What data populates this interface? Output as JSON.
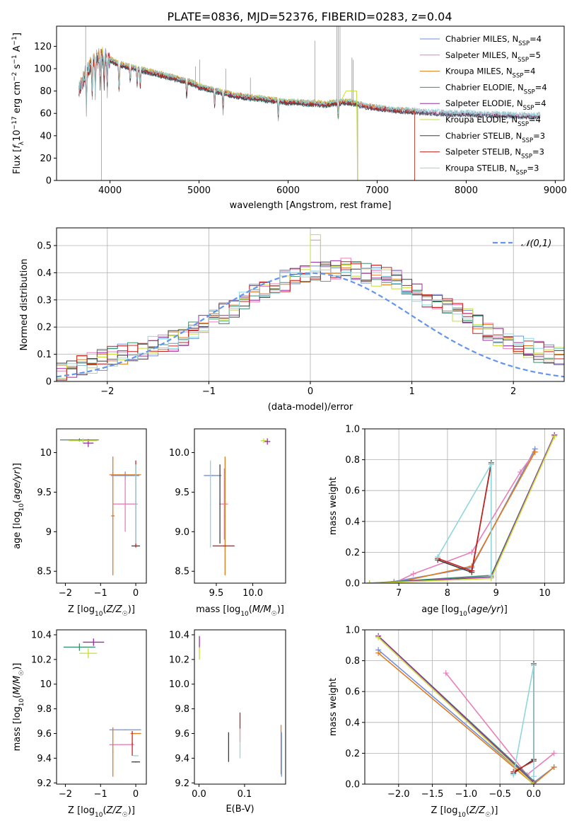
{
  "figure_title": "PLATE=0836, MJD=52376, FIBERID=0283, z=0.04",
  "colors": {
    "chabrier_miles": "#6f8fd6",
    "salpeter_miles": "#e87fb9",
    "kroupa_miles": "#e07b1c",
    "chabrier_elodie": "#3a8f6e",
    "salpeter_elodie": "#9c2fa0",
    "kroupa_elodie": "#c7dd3a",
    "chabrier_stelib": "#3c3c3c",
    "salpeter_stelib": "#c8211f",
    "kroupa_stelib": "#8fd6dd",
    "normal_curve": "#6495ed",
    "observed_spectrum": "#999999"
  },
  "chart_data": [
    {
      "id": "spectrum",
      "type": "line",
      "xlabel": "wavelength [Angstrom, rest frame]",
      "ylabel": "Flux [f_λ 10^-17 erg cm^-2 s^-1 A^-1]",
      "xlim": [
        3400,
        9100
      ],
      "ylim": [
        0,
        138
      ],
      "xticks": [
        4000,
        5000,
        6000,
        7000,
        8000,
        9000
      ],
      "yticks": [
        0,
        20,
        40,
        60,
        80,
        100,
        120
      ],
      "legend_position": "upper-right",
      "legend": [
        {
          "name": "Chabrier MILES, N_SSP=4",
          "pre": "Chabrier MILES, N",
          "sub": "SSP",
          "post": "=4",
          "color_key": "chabrier_miles"
        },
        {
          "name": "Salpeter MILES, N_SSP=5",
          "pre": "Salpeter MILES, N",
          "sub": "SSP",
          "post": "=5",
          "color_key": "salpeter_miles"
        },
        {
          "name": "Kroupa MILES, N_SSP=4",
          "pre": "Kroupa MILES, N",
          "sub": "SSP",
          "post": "=4",
          "color_key": "kroupa_miles"
        },
        {
          "name": "Chabrier ELODIE, N_SSP=4",
          "pre": "Chabrier ELODIE, N",
          "sub": "SSP",
          "post": "=4",
          "color_key": "chabrier_elodie"
        },
        {
          "name": "Salpeter ELODIE, N_SSP=4",
          "pre": "Salpeter ELODIE, N",
          "sub": "SSP",
          "post": "=4",
          "color_key": "salpeter_elodie"
        },
        {
          "name": "Kroupa ELODIE, N_SSP=4",
          "pre": "Kroupa ELODIE, N",
          "sub": "SSP",
          "post": "=4",
          "color_key": "kroupa_elodie"
        },
        {
          "name": "Chabrier STELIB, N_SSP=3",
          "pre": "Chabrier STELIB, N",
          "sub": "SSP",
          "post": "=3",
          "color_key": "chabrier_stelib"
        },
        {
          "name": "Salpeter STELIB, N_SSP=3",
          "pre": "Salpeter STELIB, N",
          "sub": "SSP",
          "post": "=3",
          "color_key": "salpeter_stelib"
        },
        {
          "name": "Kroupa STELIB, N_SSP=3",
          "pre": "Kroupa STELIB, N",
          "sub": "SSP",
          "post": "=3",
          "color_key": "kroupa_stelib"
        }
      ],
      "spectrum_envelope": {
        "x": [
          3650,
          3700,
          3800,
          3900,
          4000,
          4100,
          4200,
          4300,
          4400,
          4500,
          4600,
          4700,
          4800,
          4900,
          5000,
          5100,
          5200,
          5300,
          5400,
          5500,
          5600,
          5700,
          5800,
          5900,
          6000,
          6100,
          6200,
          6300,
          6400,
          6500,
          6600,
          6700,
          6800,
          6900,
          7000,
          7200,
          7400,
          7600,
          7800,
          8000,
          8200,
          8400,
          8600,
          8800
        ],
        "y": [
          80,
          90,
          105,
          112,
          108,
          104,
          102,
          100,
          98,
          96,
          94,
          92,
          90,
          88,
          84,
          82,
          80,
          78,
          76,
          75,
          74,
          73,
          72,
          71,
          70,
          70,
          69,
          69,
          68,
          69,
          70,
          70,
          68,
          66,
          65,
          63,
          62,
          61,
          60,
          60,
          59,
          59,
          58,
          58
        ]
      },
      "dropouts": [
        {
          "x": 3720,
          "y": 0
        },
        {
          "x": 3905,
          "y": 0
        },
        {
          "x": 6780,
          "y": 0
        },
        {
          "x": 7420,
          "y": 0
        }
      ]
    },
    {
      "id": "residual_histogram",
      "type": "line",
      "xlabel": "(data-model)/error",
      "ylabel": "Normed distribution",
      "xlim": [
        -2.5,
        2.5
      ],
      "ylim": [
        0,
        0.565
      ],
      "xticks": [
        -2,
        -1,
        0,
        1,
        2
      ],
      "yticks": [
        0.0,
        0.1,
        0.2,
        0.3,
        0.4,
        0.5
      ],
      "grid": true,
      "legend_position": "upper-right",
      "reference_curve": {
        "name": "𝒩(0,1)",
        "mu": 0,
        "sigma": 1
      },
      "bin_width": 0.1,
      "bin_start": -2.5,
      "histogram_base": [
        0.03,
        0.04,
        0.06,
        0.07,
        0.08,
        0.09,
        0.1,
        0.11,
        0.12,
        0.13,
        0.14,
        0.15,
        0.17,
        0.19,
        0.21,
        0.23,
        0.25,
        0.27,
        0.3,
        0.32,
        0.34,
        0.36,
        0.37,
        0.38,
        0.39,
        0.4,
        0.4,
        0.41,
        0.42,
        0.41,
        0.4,
        0.39,
        0.38,
        0.37,
        0.35,
        0.33,
        0.31,
        0.29,
        0.27,
        0.25,
        0.23,
        0.21,
        0.19,
        0.17,
        0.15,
        0.13,
        0.12,
        0.11,
        0.1,
        0.09
      ]
    },
    {
      "id": "age_vs_Z",
      "type": "scatter",
      "xlabel": "Z [log10(Z/Z☉)]",
      "ylabel": "age  [log10(age/yr)]",
      "xlim": [
        -2.25,
        0.3
      ],
      "ylim": [
        8.35,
        10.3
      ],
      "xticks": [
        -2,
        -1,
        0
      ],
      "yticks": [
        8.5,
        9.0,
        9.5,
        10.0
      ],
      "points": [
        {
          "x": -1.6,
          "y": 10.16,
          "xerr": 0.55,
          "yerr": 0.02,
          "color_key": "chabrier_elodie"
        },
        {
          "x": -1.35,
          "y": 10.12,
          "xerr": 0.15,
          "yerr": 0.05,
          "color_key": "salpeter_elodie"
        },
        {
          "x": -1.5,
          "y": 10.15,
          "xerr": 0.4,
          "yerr": 0.03,
          "color_key": "kroupa_elodie"
        },
        {
          "x": -0.3,
          "y": 9.71,
          "xerr": 0.4,
          "yerr": 0.05,
          "color_key": "chabrier_miles"
        },
        {
          "x": -0.3,
          "y": 9.35,
          "xerr": 0.35,
          "yerr": 0.35,
          "color_key": "salpeter_miles"
        },
        {
          "x": -0.3,
          "y": 9.72,
          "xerr": 0.45,
          "yerr": 0.0,
          "color_key": "kroupa_miles"
        },
        {
          "x": -0.65,
          "y": 9.2,
          "xerr": 0.05,
          "yerr": 0.75,
          "color_key": "kroupa_miles"
        },
        {
          "x": 0.0,
          "y": 8.82,
          "xerr": 0.12,
          "yerr": 0.0,
          "color_key": "chabrier_stelib"
        },
        {
          "x": 0.0,
          "y": 9.35,
          "xerr": 0.0,
          "yerr": 0.55,
          "color_key": "salpeter_stelib"
        },
        {
          "x": 0.0,
          "y": 9.35,
          "xerr": 0.0,
          "yerr": 0.5,
          "color_key": "kroupa_stelib"
        }
      ]
    },
    {
      "id": "age_vs_mass",
      "type": "scatter",
      "xlabel": "mass [log10(M/M☉)]",
      "ylabel": "",
      "xlim": [
        9.2,
        10.45
      ],
      "ylim": [
        8.35,
        10.3
      ],
      "xticks": [
        9.5,
        10.0
      ],
      "yticks": [
        8.5,
        9.0,
        9.5,
        10.0
      ],
      "points": [
        {
          "x": 10.15,
          "y": 10.15,
          "xerr": 0.04,
          "yerr": 0.03,
          "color_key": "kroupa_elodie"
        },
        {
          "x": 10.2,
          "y": 10.14,
          "xerr": 0.04,
          "yerr": 0.04,
          "color_key": "salpeter_elodie"
        },
        {
          "x": 9.45,
          "y": 9.71,
          "xerr": 0.12,
          "yerr": 0.0,
          "color_key": "chabrier_miles"
        },
        {
          "x": 9.55,
          "y": 9.35,
          "xerr": 0.0,
          "yerr": 0.5,
          "color_key": "chabrier_stelib"
        },
        {
          "x": 9.61,
          "y": 9.35,
          "xerr": 0.05,
          "yerr": 0.45,
          "color_key": "salpeter_miles"
        },
        {
          "x": 9.62,
          "y": 9.2,
          "xerr": 0.0,
          "yerr": 0.75,
          "color_key": "kroupa_miles"
        },
        {
          "x": 9.6,
          "y": 8.82,
          "xerr": 0.15,
          "yerr": 0.0,
          "color_key": "salpeter_stelib"
        },
        {
          "x": 9.42,
          "y": 9.35,
          "xerr": 0.0,
          "yerr": 0.55,
          "color_key": "kroupa_stelib"
        }
      ]
    },
    {
      "id": "massweight_vs_age",
      "type": "line",
      "xlabel": "age  [log10(age/yr)]",
      "ylabel": "mass weight",
      "xlim": [
        6.3,
        10.4
      ],
      "ylim": [
        0,
        1.0
      ],
      "xticks": [
        7,
        8,
        9,
        10
      ],
      "yticks": [
        0.0,
        0.2,
        0.4,
        0.6,
        0.8,
        1.0
      ],
      "grid": true,
      "series": [
        {
          "color_key": "chabrier_miles",
          "x": [
            6.9,
            8.5,
            9.8
          ],
          "y": [
            0.01,
            0.1,
            0.87
          ]
        },
        {
          "color_key": "salpeter_miles",
          "x": [
            6.9,
            7.3,
            8.5,
            9.5,
            9.8
          ],
          "y": [
            0.0,
            0.06,
            0.2,
            0.72,
            0.85
          ]
        },
        {
          "color_key": "kroupa_miles",
          "x": [
            6.9,
            8.5,
            9.8
          ],
          "y": [
            0.0,
            0.11,
            0.85
          ]
        },
        {
          "color_key": "chabrier_elodie",
          "x": [
            6.4,
            8.9,
            10.2
          ],
          "y": [
            0.0,
            0.05,
            0.96
          ]
        },
        {
          "color_key": "salpeter_elodie",
          "x": [
            6.4,
            8.9,
            10.2
          ],
          "y": [
            0.0,
            0.04,
            0.96
          ]
        },
        {
          "color_key": "kroupa_elodie",
          "x": [
            6.4,
            8.9,
            10.2
          ],
          "y": [
            0.0,
            0.03,
            0.95
          ]
        },
        {
          "color_key": "chabrier_stelib",
          "x": [
            7.8,
            8.5,
            8.9
          ],
          "y": [
            0.15,
            0.07,
            0.78
          ]
        },
        {
          "color_key": "salpeter_stelib",
          "x": [
            7.8,
            8.5,
            8.9
          ],
          "y": [
            0.16,
            0.08,
            0.77
          ]
        },
        {
          "color_key": "kroupa_stelib",
          "x": [
            7.8,
            8.9,
            8.9
          ],
          "y": [
            0.17,
            0.77,
            0.05
          ]
        }
      ]
    },
    {
      "id": "mass_vs_Z",
      "type": "scatter",
      "xlabel": "Z [log10(Z/Z☉)]",
      "ylabel": "mass [log10(M/M☉)]",
      "xlim": [
        -2.25,
        0.3
      ],
      "ylim": [
        9.19,
        10.44
      ],
      "xticks": [
        -2,
        -1,
        0
      ],
      "yticks": [
        9.2,
        9.4,
        9.6,
        9.8,
        10.0,
        10.2,
        10.4
      ],
      "points": [
        {
          "x": -1.6,
          "y": 10.3,
          "xerr": 0.45,
          "yerr": 0.03,
          "color_key": "chabrier_elodie"
        },
        {
          "x": -1.2,
          "y": 10.34,
          "xerr": 0.3,
          "yerr": 0.03,
          "color_key": "salpeter_elodie"
        },
        {
          "x": -1.35,
          "y": 10.25,
          "xerr": 0.25,
          "yerr": 0.04,
          "color_key": "kroupa_elodie"
        },
        {
          "x": -0.3,
          "y": 9.63,
          "xerr": 0.45,
          "yerr": 0.0,
          "color_key": "chabrier_miles"
        },
        {
          "x": -0.4,
          "y": 9.51,
          "xerr": 0.35,
          "yerr": 0.0,
          "color_key": "salpeter_miles"
        },
        {
          "x": -0.65,
          "y": 9.45,
          "xerr": 0.0,
          "yerr": 0.2,
          "color_key": "kroupa_miles"
        },
        {
          "x": 0.0,
          "y": 9.6,
          "xerr": 0.15,
          "yerr": 0.0,
          "color_key": "kroupa_miles"
        },
        {
          "x": 0.0,
          "y": 9.37,
          "xerr": 0.12,
          "yerr": 0.0,
          "color_key": "chabrier_stelib"
        },
        {
          "x": -0.1,
          "y": 9.52,
          "xerr": 0.0,
          "yerr": 0.1,
          "color_key": "salpeter_stelib"
        },
        {
          "x": 0.0,
          "y": 9.42,
          "xerr": 0.08,
          "yerr": 0.0,
          "color_key": "kroupa_stelib"
        }
      ]
    },
    {
      "id": "mass_vs_ebv",
      "type": "scatter",
      "xlabel": "E(B-V)",
      "ylabel": "",
      "xlim": [
        -0.01,
        0.19
      ],
      "ylim": [
        9.19,
        10.44
      ],
      "xticks": [
        0.0,
        0.1
      ],
      "yticks": [
        9.2,
        9.4,
        9.6,
        9.8,
        10.0,
        10.2,
        10.4
      ],
      "points": [
        {
          "x": 0.001,
          "y": 10.34,
          "xerr": 0.0,
          "yerr": 0.05,
          "color_key": "salpeter_elodie"
        },
        {
          "x": 0.001,
          "y": 10.25,
          "xerr": 0.0,
          "yerr": 0.05,
          "color_key": "kroupa_elodie"
        },
        {
          "x": 0.065,
          "y": 9.49,
          "xerr": 0.0,
          "yerr": 0.12,
          "color_key": "chabrier_stelib"
        },
        {
          "x": 0.09,
          "y": 9.65,
          "xerr": 0.0,
          "yerr": 0.12,
          "color_key": "salpeter_stelib"
        },
        {
          "x": 0.09,
          "y": 9.52,
          "xerr": 0.0,
          "yerr": 0.12,
          "color_key": "kroupa_stelib"
        },
        {
          "x": 0.18,
          "y": 9.47,
          "xerr": 0.0,
          "yerr": 0.2,
          "color_key": "kroupa_miles"
        },
        {
          "x": 0.181,
          "y": 9.43,
          "xerr": 0.0,
          "yerr": 0.18,
          "color_key": "chabrier_miles"
        }
      ]
    },
    {
      "id": "massweight_vs_Z",
      "type": "line",
      "xlabel": "Z [log10(Z/Z☉)]",
      "ylabel": "mass weight",
      "xlim": [
        -2.5,
        0.45
      ],
      "ylim": [
        0,
        1.0
      ],
      "xticks": [
        -2.0,
        -1.5,
        -1.0,
        -0.5,
        0.0
      ],
      "yticks": [
        0.0,
        0.2,
        0.4,
        0.6,
        0.8,
        1.0
      ],
      "grid": true,
      "series": [
        {
          "color_key": "chabrier_miles",
          "x": [
            -2.3,
            0.0,
            0.3
          ],
          "y": [
            0.87,
            0.01,
            0.11
          ]
        },
        {
          "color_key": "salpeter_miles",
          "x": [
            -1.3,
            -0.1,
            0.3
          ],
          "y": [
            0.72,
            0.06,
            0.2
          ]
        },
        {
          "color_key": "kroupa_miles",
          "x": [
            -2.3,
            0.0,
            0.3
          ],
          "y": [
            0.85,
            0.0,
            0.11
          ]
        },
        {
          "color_key": "chabrier_elodie",
          "x": [
            -2.3,
            0.0
          ],
          "y": [
            0.96,
            0.02
          ]
        },
        {
          "color_key": "salpeter_elodie",
          "x": [
            -2.3,
            0.0
          ],
          "y": [
            0.96,
            0.01
          ]
        },
        {
          "color_key": "kroupa_elodie",
          "x": [
            -2.3,
            0.0
          ],
          "y": [
            0.95,
            0.0
          ]
        },
        {
          "color_key": "chabrier_stelib",
          "x": [
            -0.3,
            0.0,
            0.0
          ],
          "y": [
            0.07,
            0.16,
            0.78
          ]
        },
        {
          "color_key": "salpeter_stelib",
          "x": [
            -0.3,
            0.0,
            0.0
          ],
          "y": [
            0.08,
            0.15,
            0.77
          ]
        },
        {
          "color_key": "kroupa_stelib",
          "x": [
            -0.3,
            0.0,
            0.0
          ],
          "y": [
            0.06,
            0.77,
            0.05
          ]
        }
      ]
    }
  ]
}
